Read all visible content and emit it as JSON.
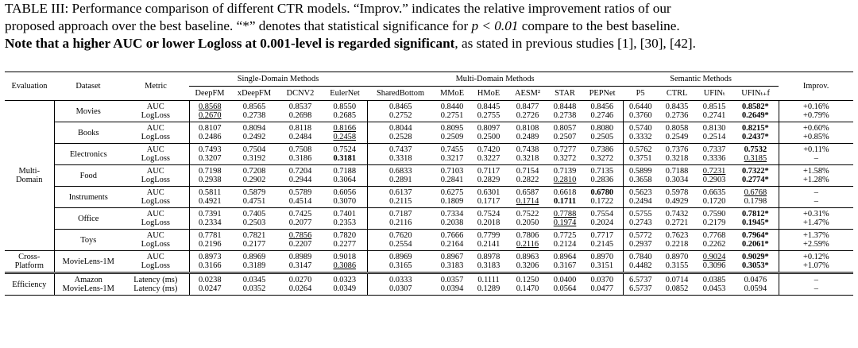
{
  "caption": {
    "line1": "TABLE III: Performance comparison of different CTR models. “Improv.” indicates the relative improvement ratios of our",
    "line2_a": "proposed approach over the best baseline. “*” denotes that statistical significance for ",
    "line2_math": "p < 0.01",
    "line2_b": " compare to the best baseline.",
    "line3_bold": "Note that a higher AUC or lower Logloss at 0.001-level is regarded significant",
    "line3_rest": ", as stated in previous studies [1], [30], [42]."
  },
  "header": {
    "evaluation": "Evaluation",
    "dataset": "Dataset",
    "metric": "Metric",
    "group_single": "Single-Domain Methods",
    "group_multi": "Multi-Domain Methods",
    "group_semantic": "Semantic Methods",
    "improv": "Improv.",
    "models": [
      "DeepFM",
      "xDeepFM",
      "DCNV2",
      "EulerNet",
      "SharedBottom",
      "MMoE",
      "HMoE",
      "AESM²",
      "STAR",
      "PEPNet",
      "P5",
      "CTRL",
      "UFINₜ",
      "UFINₜ₊f"
    ]
  },
  "sections": [
    {
      "eval": "Multi-Domain",
      "eval_line1": "Multi-",
      "eval_line2": "Domain",
      "rows": [
        {
          "dataset": "Movies",
          "metrics": [
            "AUC",
            "LogLoss"
          ],
          "cells": [
            [
              "0.8568",
              "0.2670"
            ],
            [
              "0.8565",
              "0.2738"
            ],
            [
              "0.8537",
              "0.2698"
            ],
            [
              "0.8550",
              "0.2685"
            ],
            [
              "0.8465",
              "0.2752"
            ],
            [
              "0.8440",
              "0.2751"
            ],
            [
              "0.8445",
              "0.2755"
            ],
            [
              "0.8477",
              "0.2726"
            ],
            [
              "0.8448",
              "0.2738"
            ],
            [
              "0.8456",
              "0.2746"
            ],
            [
              "0.6440",
              "0.3760"
            ],
            [
              "0.8435",
              "0.2736"
            ],
            [
              "0.8515",
              "0.2741"
            ],
            [
              "0.8582*",
              "0.2649*"
            ]
          ],
          "improv": [
            "+0.16%",
            "+0.79%"
          ]
        },
        {
          "dataset": "Books",
          "metrics": [
            "AUC",
            "LogLoss"
          ],
          "cells": [
            [
              "0.8107",
              "0.2486"
            ],
            [
              "0.8094",
              "0.2492"
            ],
            [
              "0.8118",
              "0.2484"
            ],
            [
              "0.8166",
              "0.2458"
            ],
            [
              "0.8044",
              "0.2528"
            ],
            [
              "0.8095",
              "0.2509"
            ],
            [
              "0.8097",
              "0.2500"
            ],
            [
              "0.8108",
              "0.2489"
            ],
            [
              "0.8057",
              "0.2507"
            ],
            [
              "0.8080",
              "0.2505"
            ],
            [
              "0.5740",
              "0.3332"
            ],
            [
              "0.8058",
              "0.2549"
            ],
            [
              "0.8130",
              "0.2514"
            ],
            [
              "0.8215*",
              "0.2437*"
            ]
          ],
          "improv": [
            "+0.60%",
            "+0.85%"
          ]
        },
        {
          "dataset": "Electronics",
          "metrics": [
            "AUC",
            "LogLoss"
          ],
          "cells": [
            [
              "0.7493",
              "0.3207"
            ],
            [
              "0.7504",
              "0.3192"
            ],
            [
              "0.7508",
              "0.3186"
            ],
            [
              "0.7524",
              "0.3181"
            ],
            [
              "0.7437",
              "0.3318"
            ],
            [
              "0.7455",
              "0.3217"
            ],
            [
              "0.7420",
              "0.3227"
            ],
            [
              "0.7438",
              "0.3218"
            ],
            [
              "0.7277",
              "0.3272"
            ],
            [
              "0.7386",
              "0.3272"
            ],
            [
              "0.5762",
              "0.3751"
            ],
            [
              "0.7376",
              "0.3218"
            ],
            [
              "0.7337",
              "0.3336"
            ],
            [
              "0.7532",
              "0.3185"
            ]
          ],
          "improv": [
            "+0.11%",
            "–"
          ]
        },
        {
          "dataset": "Food",
          "metrics": [
            "AUC",
            "LogLoss"
          ],
          "cells": [
            [
              "0.7198",
              "0.2938"
            ],
            [
              "0.7208",
              "0.2902"
            ],
            [
              "0.7204",
              "0.2944"
            ],
            [
              "0.7188",
              "0.3064"
            ],
            [
              "0.6833",
              "0.2891"
            ],
            [
              "0.7103",
              "0.2841"
            ],
            [
              "0.7117",
              "0.2829"
            ],
            [
              "0.7154",
              "0.2822"
            ],
            [
              "0.7139",
              "0.2810"
            ],
            [
              "0.7135",
              "0.2836"
            ],
            [
              "0.5899",
              "0.3658"
            ],
            [
              "0.7188",
              "0.3034"
            ],
            [
              "0.7231",
              "0.2903"
            ],
            [
              "0.7322*",
              "0.2774*"
            ]
          ],
          "improv": [
            "+1.58%",
            "+1.28%"
          ]
        },
        {
          "dataset": "Instruments",
          "metrics": [
            "AUC",
            "LogLoss"
          ],
          "cells": [
            [
              "0.5811",
              "0.4921"
            ],
            [
              "0.5879",
              "0.4751"
            ],
            [
              "0.5789",
              "0.4514"
            ],
            [
              "0.6056",
              "0.3070"
            ],
            [
              "0.6137",
              "0.2115"
            ],
            [
              "0.6275",
              "0.1809"
            ],
            [
              "0.6301",
              "0.1717"
            ],
            [
              "0.6587",
              "0.1714"
            ],
            [
              "0.6618",
              "0.1711"
            ],
            [
              "0.6780",
              "0.1722"
            ],
            [
              "0.5623",
              "0.2494"
            ],
            [
              "0.5978",
              "0.4929"
            ],
            [
              "0.6635",
              "0.1720"
            ],
            [
              "0.6768",
              "0.1798"
            ]
          ],
          "improv": [
            "–",
            "–"
          ]
        },
        {
          "dataset": "Office",
          "metrics": [
            "AUC",
            "LogLoss"
          ],
          "cells": [
            [
              "0.7391",
              "0.2334"
            ],
            [
              "0.7405",
              "0.2503"
            ],
            [
              "0.7425",
              "0.2077"
            ],
            [
              "0.7401",
              "0.2353"
            ],
            [
              "0.7187",
              "0.2116"
            ],
            [
              "0.7334",
              "0.2038"
            ],
            [
              "0.7524",
              "0.2018"
            ],
            [
              "0.7522",
              "0.2050"
            ],
            [
              "0.7788",
              "0.1974"
            ],
            [
              "0.7554",
              "0.2024"
            ],
            [
              "0.5755",
              "0.2743"
            ],
            [
              "0.7432",
              "0.2721"
            ],
            [
              "0.7590",
              "0.2179"
            ],
            [
              "0.7812*",
              "0.1945*"
            ]
          ],
          "improv": [
            "+0.31%",
            "+1.47%"
          ]
        },
        {
          "dataset": "Toys",
          "metrics": [
            "AUC",
            "LogLoss"
          ],
          "cells": [
            [
              "0.7781",
              "0.2196"
            ],
            [
              "0.7821",
              "0.2177"
            ],
            [
              "0.7856",
              "0.2207"
            ],
            [
              "0.7820",
              "0.2277"
            ],
            [
              "0.7620",
              "0.2554"
            ],
            [
              "0.7666",
              "0.2164"
            ],
            [
              "0.7799",
              "0.2141"
            ],
            [
              "0.7806",
              "0.2116"
            ],
            [
              "0.7725",
              "0.2124"
            ],
            [
              "0.7717",
              "0.2145"
            ],
            [
              "0.5772",
              "0.2937"
            ],
            [
              "0.7623",
              "0.2218"
            ],
            [
              "0.7768",
              "0.2262"
            ],
            [
              "0.7964*",
              "0.2061*"
            ]
          ],
          "improv": [
            "+1.37%",
            "+2.59%"
          ]
        }
      ]
    },
    {
      "eval": "Cross-Platform",
      "eval_line1": "Cross-",
      "eval_line2": "Platform",
      "rows": [
        {
          "dataset": "MovieLens-1M",
          "metrics": [
            "AUC",
            "LogLoss"
          ],
          "cells": [
            [
              "0.8973",
              "0.3166"
            ],
            [
              "0.8969",
              "0.3189"
            ],
            [
              "0.8989",
              "0.3147"
            ],
            [
              "0.9018",
              "0.3086"
            ],
            [
              "0.8969",
              "0.3165"
            ],
            [
              "0.8967",
              "0.3183"
            ],
            [
              "0.8978",
              "0.3183"
            ],
            [
              "0.8963",
              "0.3206"
            ],
            [
              "0.8964",
              "0.3167"
            ],
            [
              "0.8970",
              "0.3151"
            ],
            [
              "0.7840",
              "0.4482"
            ],
            [
              "0.8970",
              "0.3155"
            ],
            [
              "0.9024",
              "0.3096"
            ],
            [
              "0.9029*",
              "0.3053*"
            ]
          ],
          "improv": [
            "+0.12%",
            "+1.07%"
          ]
        }
      ]
    },
    {
      "eval": "Efficiency",
      "rows": [
        {
          "dataset_lines": [
            "Amazon",
            "MovieLens-1M"
          ],
          "metrics": [
            "Latency (ms)",
            "Latency (ms)"
          ],
          "cells": [
            [
              "0.0238",
              "0.0247"
            ],
            [
              "0.0345",
              "0.0352"
            ],
            [
              "0.0270",
              "0.0264"
            ],
            [
              "0.0323",
              "0.0349"
            ],
            [
              "0.0333",
              "0.0307"
            ],
            [
              "0.0357",
              "0.0394"
            ],
            [
              "0.1111",
              "0.1289"
            ],
            [
              "0.1250",
              "0.1470"
            ],
            [
              "0.0400",
              "0.0564"
            ],
            [
              "0.0370",
              "0.0477"
            ],
            [
              "6.5737",
              "6.5737"
            ],
            [
              "0.0714",
              "0.0852"
            ],
            [
              "0.0385",
              "0.0453"
            ],
            [
              "0.0476",
              "0.0594"
            ]
          ],
          "improv": [
            "–",
            "–"
          ]
        }
      ]
    }
  ],
  "style_marks": {
    "underline": [
      "0-0-0-0",
      "0-0-0-1",
      "0-1-3-0",
      "0-1-3-1",
      "0-2-13-1",
      "0-3-12-0",
      "0-3-8-1",
      "0-4-13-0",
      "0-4-7-1",
      "0-5-8-0",
      "0-5-8-1",
      "0-6-2-0",
      "0-6-7-1",
      "1-0-12-0",
      "1-0-3-1"
    ],
    "bold": [
      "0-0-13-0",
      "0-0-13-1",
      "0-1-13-0",
      "0-1-13-1",
      "0-2-3-1",
      "0-2-13-0",
      "0-3-13-0",
      "0-3-13-1",
      "0-4-9-0",
      "0-4-8-1",
      "0-5-13-0",
      "0-5-13-1",
      "0-6-13-0",
      "0-6-13-1",
      "1-0-13-0",
      "1-0-13-1"
    ]
  }
}
